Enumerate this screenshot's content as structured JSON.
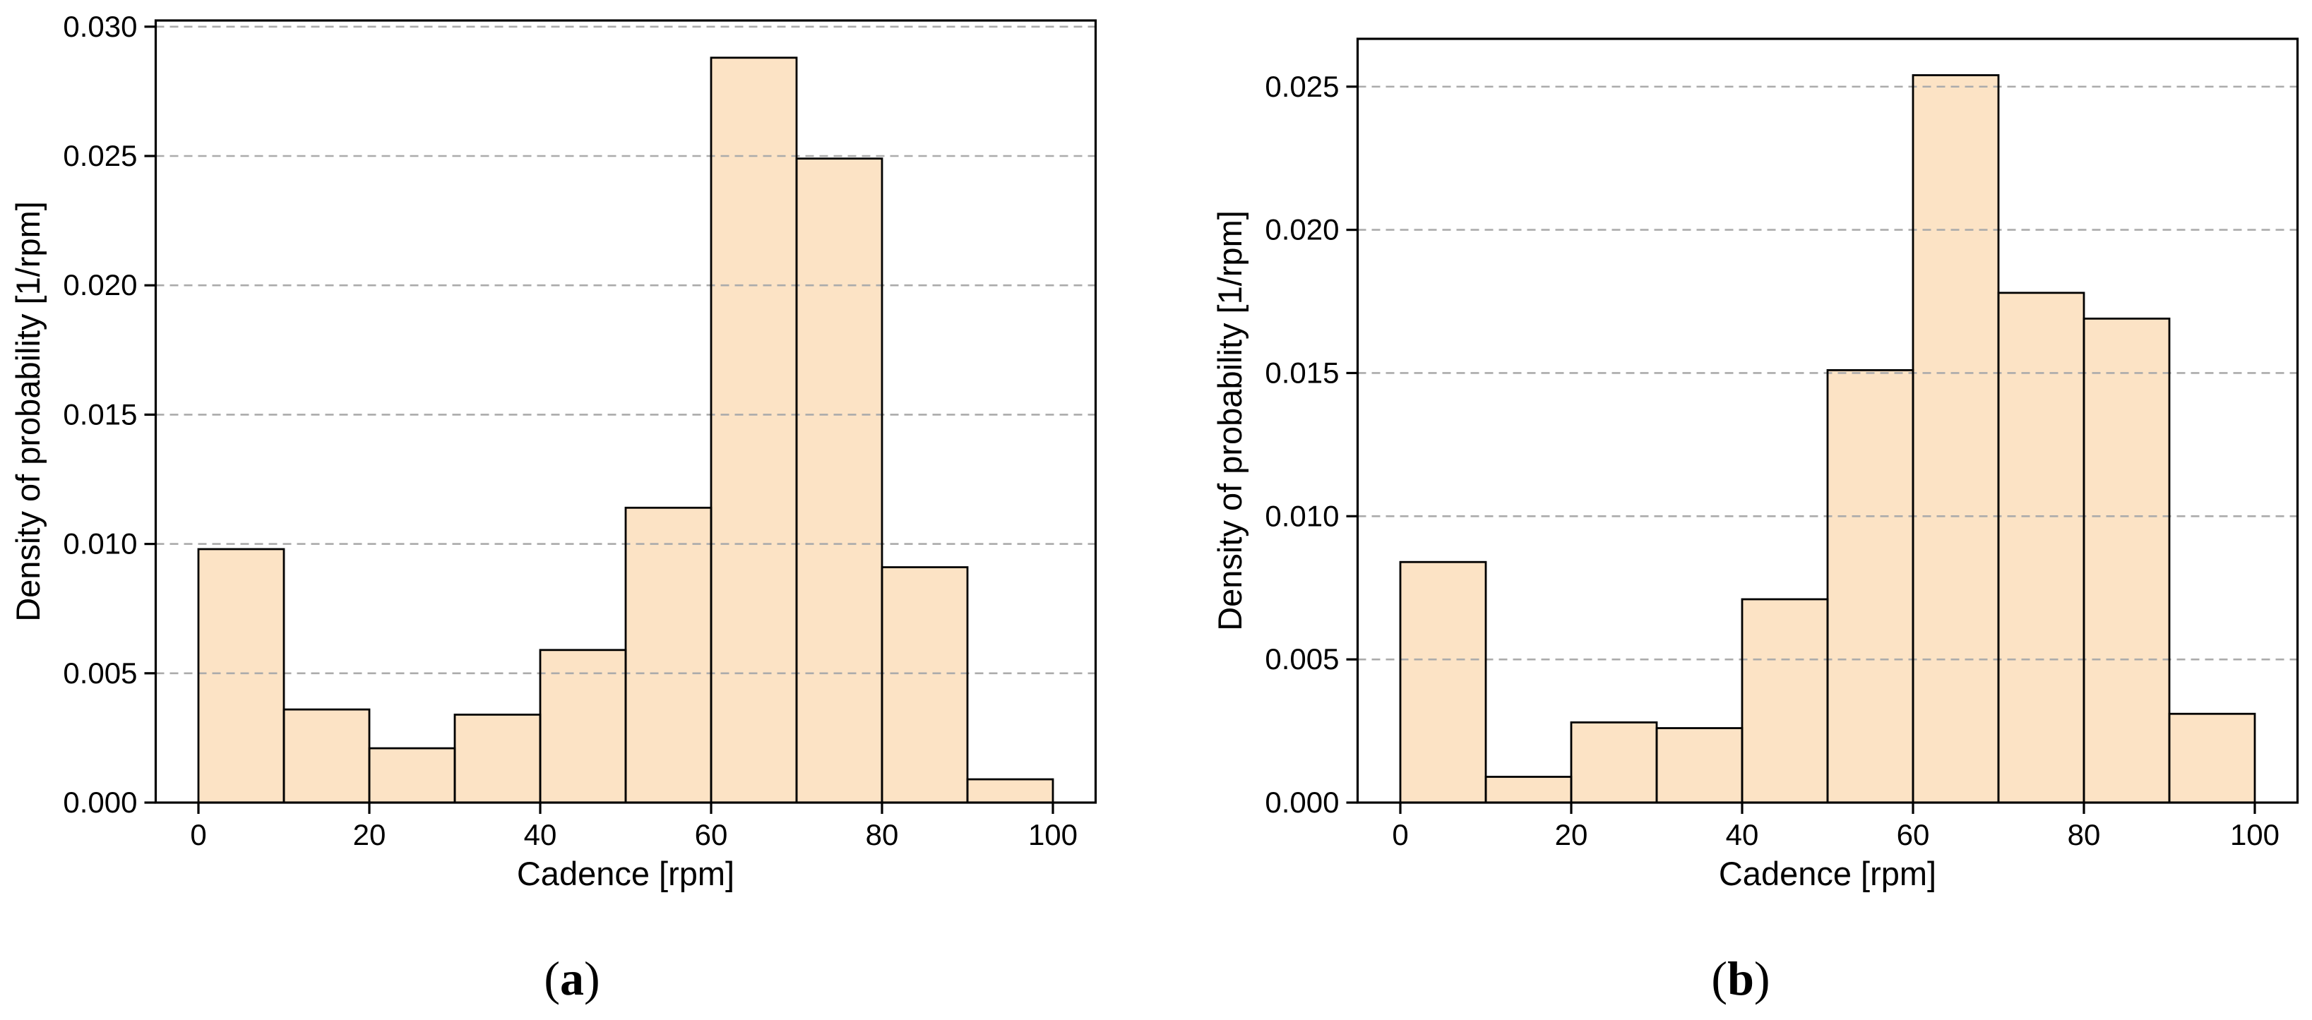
{
  "figure": {
    "background_color": "#ffffff",
    "text_color": "#000000",
    "bar_fill_color": "#fce3c5",
    "bar_edge_color": "#000000",
    "grid_color": "#ababab",
    "spine_color": "#000000"
  },
  "captions": {
    "a": {
      "open": "(",
      "letter": "a",
      "close": ")"
    },
    "b": {
      "open": "(",
      "letter": "b",
      "close": ")"
    }
  },
  "chart_data": [
    {
      "id": "a",
      "type": "bar",
      "subtype": "histogram",
      "title": "",
      "xlabel": "Cadence [rpm]",
      "ylabel": "Density of probability [1/rpm]",
      "bin_edges": [
        0,
        10,
        20,
        30,
        40,
        50,
        60,
        70,
        80,
        90,
        100
      ],
      "values": [
        0.0098,
        0.0036,
        0.0021,
        0.0034,
        0.0059,
        0.0114,
        0.0288,
        0.0249,
        0.0091,
        0.0009
      ],
      "xticks": [
        0,
        20,
        40,
        60,
        80,
        100
      ],
      "xtick_labels": [
        "0",
        "20",
        "40",
        "60",
        "80",
        "100"
      ],
      "yticks": [
        0.0,
        0.005,
        0.01,
        0.015,
        0.02,
        0.025,
        0.03
      ],
      "ytick_labels": [
        "0.000",
        "0.005",
        "0.010",
        "0.015",
        "0.020",
        "0.025",
        "0.030"
      ],
      "xlim": [
        -5,
        105
      ],
      "ylim": [
        0,
        0.03024
      ],
      "grid": "horizontal-dashed",
      "legend": "none"
    },
    {
      "id": "b",
      "type": "bar",
      "subtype": "histogram",
      "title": "",
      "xlabel": "Cadence [rpm]",
      "ylabel": "Density of probability [1/rpm]",
      "bin_edges": [
        0,
        10,
        20,
        30,
        40,
        50,
        60,
        70,
        80,
        90,
        100
      ],
      "values": [
        0.0084,
        0.0009,
        0.0028,
        0.0026,
        0.0071,
        0.0151,
        0.0254,
        0.0178,
        0.0169,
        0.0031
      ],
      "xticks": [
        0,
        20,
        40,
        60,
        80,
        100
      ],
      "xtick_labels": [
        "0",
        "20",
        "40",
        "60",
        "80",
        "100"
      ],
      "yticks": [
        0.0,
        0.005,
        0.01,
        0.015,
        0.02,
        0.025
      ],
      "ytick_labels": [
        "0.000",
        "0.005",
        "0.010",
        "0.015",
        "0.020",
        "0.025"
      ],
      "xlim": [
        -5,
        105
      ],
      "ylim": [
        0,
        0.02667
      ],
      "grid": "horizontal-dashed",
      "legend": "none"
    }
  ]
}
